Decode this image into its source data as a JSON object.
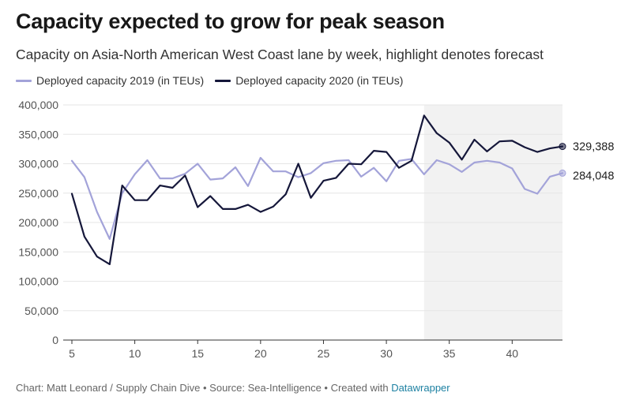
{
  "header": {
    "title": "Capacity expected to grow for peak season",
    "subtitle": "Capacity on Asia-North American West Coast lane by week, highlight denotes forecast"
  },
  "footer": {
    "text": "Chart: Matt Leonard / Supply Chain Dive • Source: Sea-Intelligence • Created with ",
    "link": "Datawrapper"
  },
  "colors": {
    "series_2019": "#a3a3d9",
    "series_2020": "#15173a",
    "forecast_band": "#f2f2f2",
    "grid": "#e6e6e6",
    "axis_text": "#555555"
  },
  "chart_data": {
    "type": "line",
    "title": "Capacity expected to grow for peak season",
    "subtitle": "Capacity on Asia-North American West Coast lane by week, highlight denotes forecast",
    "xlabel": "",
    "ylabel": "",
    "xlim": [
      5,
      44
    ],
    "ylim": [
      0,
      400000
    ],
    "xticks": [
      5,
      10,
      15,
      20,
      25,
      30,
      35,
      40
    ],
    "yticks": [
      0,
      50000,
      100000,
      150000,
      200000,
      250000,
      300000,
      350000,
      400000
    ],
    "ytick_labels": [
      "0",
      "50,000",
      "100,000",
      "150,000",
      "200,000",
      "250,000",
      "300,000",
      "350,000",
      "400,000"
    ],
    "grid": true,
    "legend_placement": "top-left",
    "forecast_range": [
      33,
      44
    ],
    "end_labels": [
      "329,388",
      "284,048"
    ],
    "x": [
      5,
      6,
      7,
      8,
      9,
      10,
      11,
      12,
      13,
      14,
      15,
      16,
      17,
      18,
      19,
      20,
      21,
      22,
      23,
      24,
      25,
      26,
      27,
      28,
      29,
      30,
      31,
      32,
      33,
      34,
      35,
      36,
      37,
      38,
      39,
      40,
      41,
      42,
      43,
      44
    ],
    "series": [
      {
        "name": "Deployed capacity 2019 (in TEUs)",
        "values": [
          305000,
          277000,
          218000,
          172000,
          250000,
          282000,
          306000,
          275000,
          275000,
          283000,
          300000,
          273000,
          275000,
          294000,
          262000,
          310000,
          287000,
          287000,
          277000,
          284000,
          301000,
          305000,
          306000,
          278000,
          293000,
          270000,
          305000,
          308000,
          282000,
          306000,
          299000,
          286000,
          302000,
          305000,
          302000,
          292000,
          257000,
          249000,
          278000,
          284048
        ]
      },
      {
        "name": "Deployed capacity 2020 (in TEUs)",
        "values": [
          249000,
          176000,
          142000,
          129000,
          263000,
          238000,
          238000,
          263000,
          259000,
          280000,
          226000,
          245000,
          223000,
          223000,
          230000,
          218000,
          227000,
          248000,
          300000,
          242000,
          271000,
          276000,
          300000,
          299000,
          322000,
          320000,
          293000,
          305000,
          382000,
          352000,
          336000,
          307000,
          341000,
          321000,
          338000,
          339000,
          328000,
          320000,
          326000,
          329388
        ]
      }
    ]
  }
}
